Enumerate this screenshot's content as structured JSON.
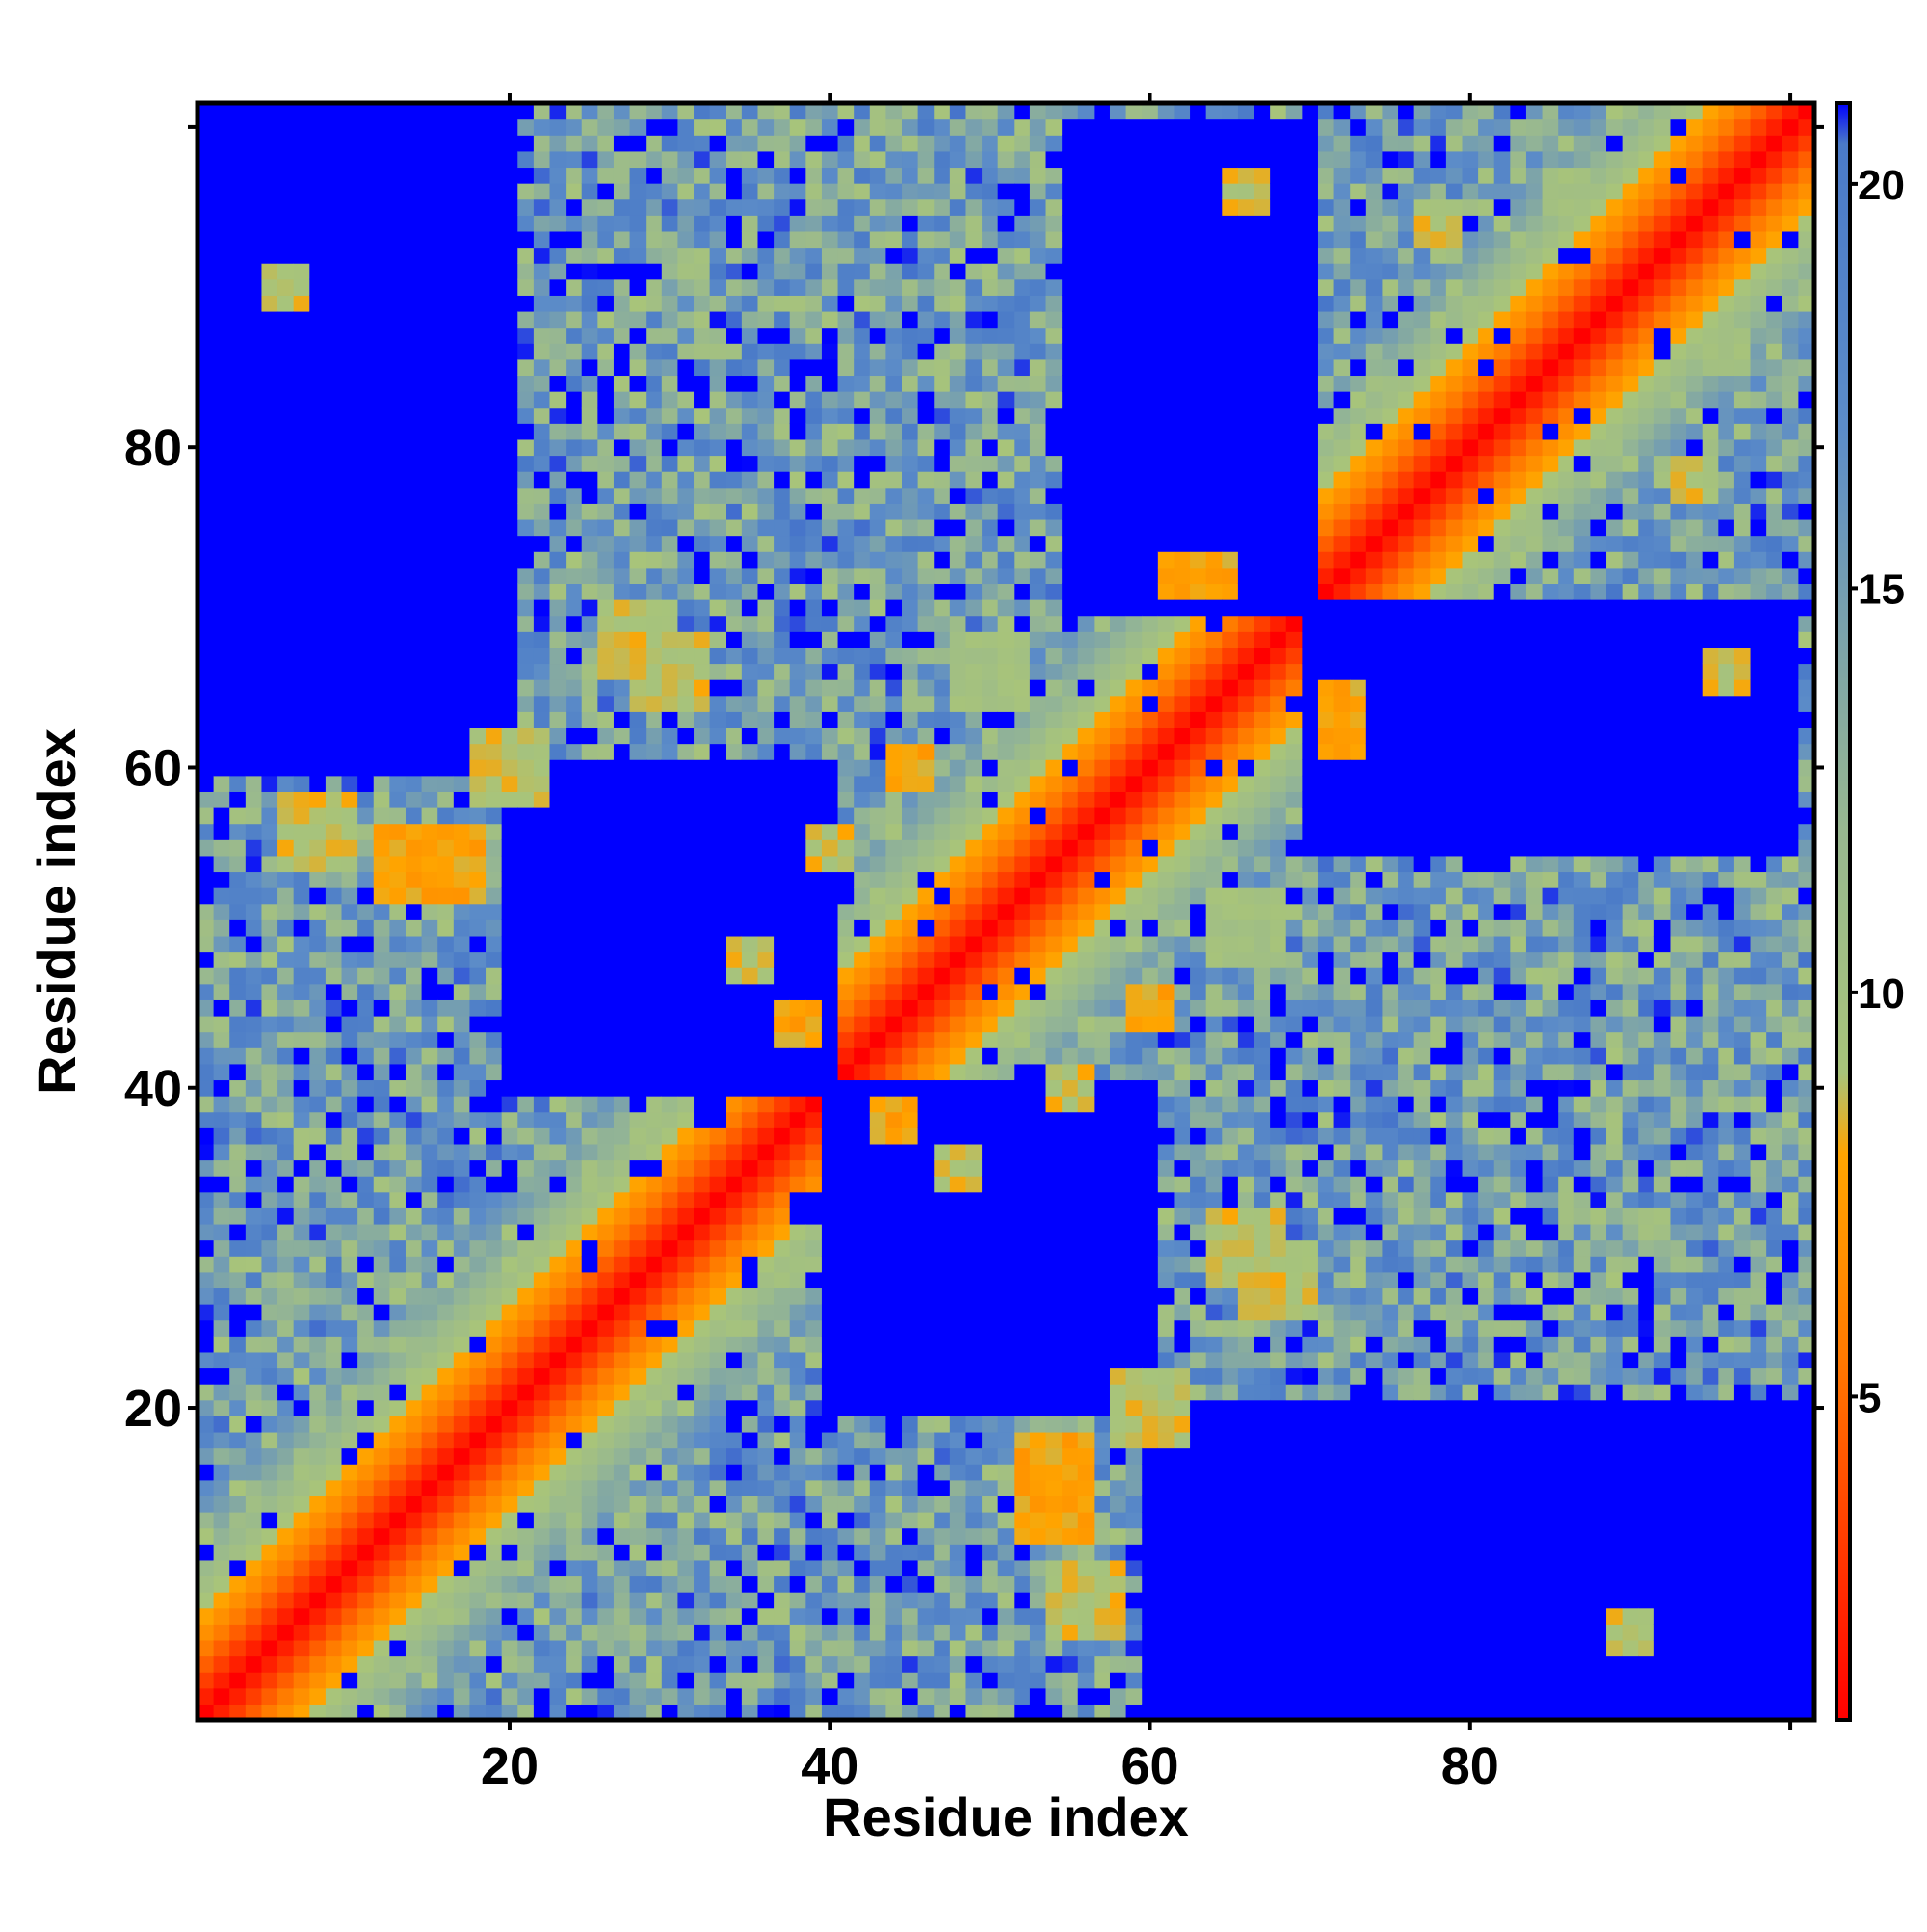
{
  "chart_data": {
    "type": "heatmap",
    "title": "",
    "xlabel": "Residue index",
    "ylabel": "Residue index",
    "n_residues": 101,
    "xlim": [
      1,
      101
    ],
    "ylim": [
      1,
      101
    ],
    "x_ticks": [
      20,
      40,
      60,
      80
    ],
    "y_ticks": [
      20,
      40,
      60,
      80
    ],
    "colorbar": {
      "range": [
        1,
        21
      ],
      "ticks": [
        5,
        10,
        15,
        20
      ],
      "stops": [
        {
          "value": 1,
          "color": "#ff0000"
        },
        {
          "value": 5.5,
          "color": "#ff7a00"
        },
        {
          "value": 8,
          "color": "#ffa500"
        },
        {
          "value": 9,
          "color": "#a8c47a"
        },
        {
          "value": 12,
          "color": "#98b890"
        },
        {
          "value": 17,
          "color": "#5c8cc8"
        },
        {
          "value": 20.5,
          "color": "#4a7ac8"
        },
        {
          "value": 21,
          "color": "#0000ff"
        }
      ]
    },
    "matrix_model": {
      "description_of_values": "symmetric residue-residue distance matrix; diagonal ~1, values saturate at 21",
      "diagonal_value": 1,
      "slope_per_residue": 1.15,
      "max_value": 21,
      "contacts": [
        {
          "i": 40,
          "j": 55,
          "value": 8,
          "width": 1
        },
        {
          "i": 45,
          "j": 60,
          "value": 7,
          "width": 1
        },
        {
          "i": 62,
          "j": 72,
          "value": 7,
          "width": 1
        },
        {
          "i": 64,
          "j": 72,
          "value": 7,
          "width": 1
        },
        {
          "i": 30,
          "j": 66,
          "value": 8,
          "width": 2
        },
        {
          "i": 28,
          "j": 68,
          "value": 8,
          "width": 2
        },
        {
          "i": 20,
          "j": 60,
          "value": 8,
          "width": 2
        },
        {
          "i": 16,
          "j": 54,
          "value": 7,
          "width": 2
        },
        {
          "i": 8,
          "j": 56,
          "value": 8,
          "width": 2
        },
        {
          "i": 35,
          "j": 48,
          "value": 8,
          "width": 1
        },
        {
          "i": 38,
          "j": 44,
          "value": 7,
          "width": 1
        },
        {
          "i": 14,
          "j": 54,
          "value": 7,
          "width": 2
        },
        {
          "i": 50,
          "j": 66,
          "value": 9,
          "width": 2
        },
        {
          "i": 6,
          "j": 90,
          "value": 8,
          "width": 1
        },
        {
          "i": 66,
          "j": 96,
          "value": 8,
          "width": 1
        },
        {
          "i": 78,
          "j": 94,
          "value": 8,
          "width": 1
        },
        {
          "i": 86,
          "j": 96,
          "value": 9,
          "width": 1
        }
      ],
      "far_regions": [
        {
          "i": [
            1,
            20
          ],
          "j": [
            60,
            101
          ]
        },
        {
          "i": [
            20,
            40
          ],
          "j": [
            40,
            60
          ]
        },
        {
          "i": [
            55,
            70
          ],
          "j": [
            70,
            100
          ]
        }
      ]
    }
  }
}
